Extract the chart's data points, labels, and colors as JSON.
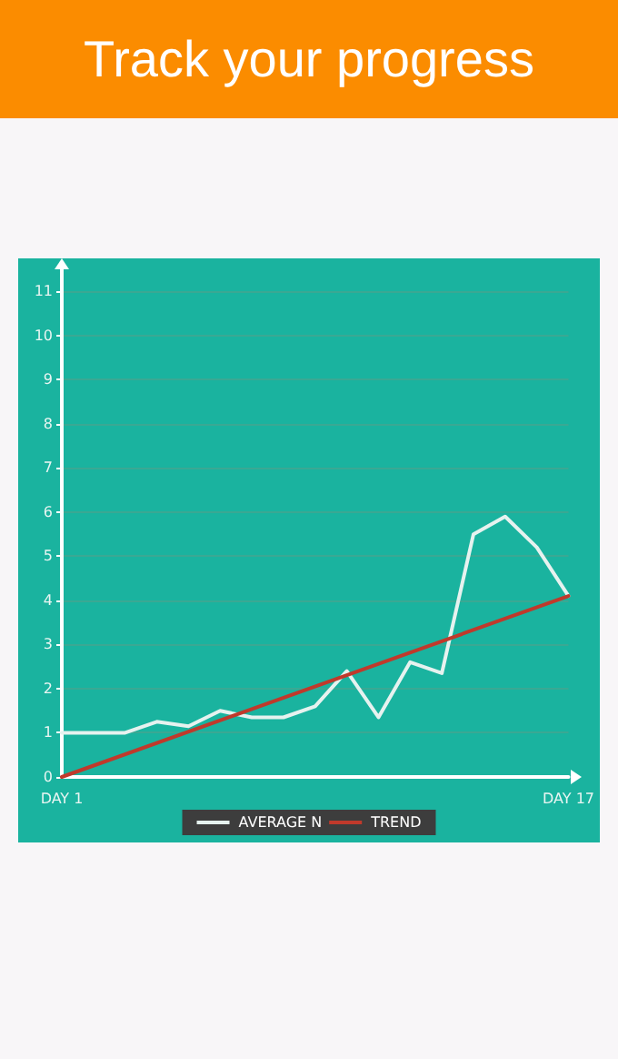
{
  "chart_data": {
    "type": "line",
    "title": "Track your progress",
    "categories": [
      "DAY 1",
      null,
      null,
      null,
      null,
      null,
      null,
      null,
      null,
      null,
      null,
      null,
      null,
      null,
      null,
      null,
      "DAY 17"
    ],
    "series": [
      {
        "name": "AVERAGE N",
        "color": "#e6f2ef",
        "values": [
          1,
          1,
          1,
          1.25,
          1.15,
          1.5,
          1.35,
          1.35,
          1.6,
          2.4,
          1.35,
          2.6,
          2.35,
          5.5,
          5.9,
          5.2,
          4.1
        ]
      },
      {
        "name": "TREND",
        "color": "#c0392b",
        "x": [
          "DAY 1",
          "DAY 17"
        ],
        "values": [
          0,
          4.1
        ]
      }
    ],
    "ylim": [
      0,
      11.5
    ],
    "yticks": [
      0,
      1,
      2,
      3,
      4,
      5,
      6,
      7,
      8,
      9,
      10,
      11
    ],
    "grid": "y",
    "legend": "bottom",
    "marker": "none",
    "line_style": "solid"
  }
}
